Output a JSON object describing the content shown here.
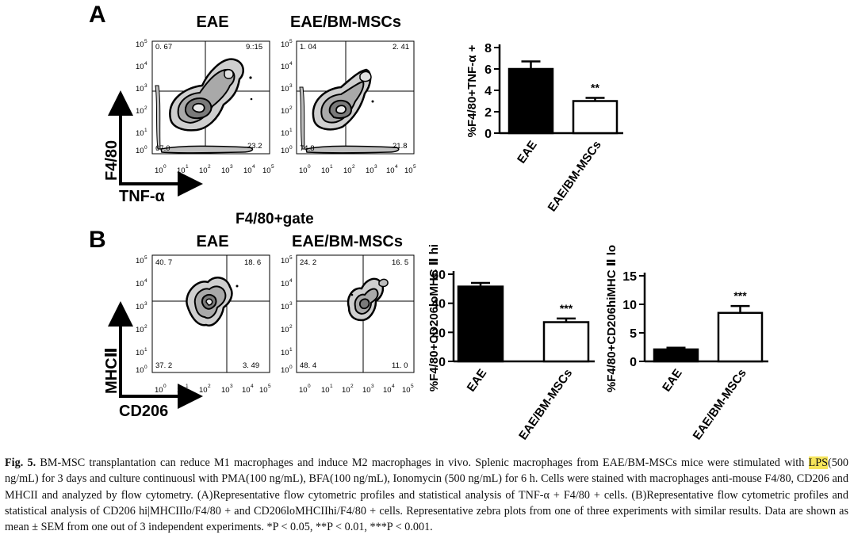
{
  "panel_a": {
    "letter": "A",
    "plots": [
      {
        "title": "EAE",
        "quadrants": {
          "ul": "0. 67",
          "ur": "9.:15",
          "ll": "67.0",
          "lr": "23.2"
        }
      },
      {
        "title": "EAE/BM-MSCs",
        "quadrants": {
          "ul": "1. 04",
          "ur": "2. 41",
          "ll": "74.8",
          "lr": "21.8"
        }
      }
    ],
    "y_axis_label": "F4/80",
    "x_axis_label": "TNF-α"
  },
  "panel_b": {
    "letter": "B",
    "gate_label": "F4/80+gate",
    "plots": [
      {
        "title": "EAE",
        "quadrants": {
          "ul": "40. 7",
          "ur": "18. 6",
          "ll": "37. 2",
          "lr": "3. 49"
        }
      },
      {
        "title": "EAE/BM-MSCs",
        "quadrants": {
          "ul": "24. 2",
          "ur": "16. 5",
          "ll": "48. 4",
          "lr": "11. 0"
        }
      }
    ],
    "y_axis_label": "MHCⅡ",
    "x_axis_label": "CD206"
  },
  "flow_ticks": {
    "x": [
      "10",
      "10",
      "10",
      "10",
      "10",
      "10"
    ],
    "x_exp": [
      "0",
      "1",
      "2",
      "3",
      "4",
      "5"
    ],
    "y": [
      "10",
      "10",
      "10",
      "10",
      "10",
      "10"
    ],
    "y_exp": [
      "5",
      "4",
      "3",
      "2",
      "1",
      "0"
    ]
  },
  "caption": {
    "label": "Fig. 5.",
    "segments": [
      " BM-MSC transplantation can reduce M1 macrophages and induce M2 macrophages in vivo. Splenic macrophages from EAE/BM-MSCs mice were stimulated with ",
      "LPS",
      "(500 ng/mL) for 3 days and culture continuousl with PMA(100 ng/mL), BFA(100 ng/mL), Ionomycin (500 ng/mL) for 6 h. Cells were stained with macrophages anti-mouse F4/80, CD206 and MHCII and analyzed by flow cytometry. (A)Representative flow cytometric profiles and statistical analysis of TNF-α + F4/80 +  cells. (B)Representative flow cytometric profiles and statistical analysis of CD206 hi|MHCIIlo/F4/80 +  and CD206loMHCIIhi/F4/80 +  cells. Representative zebra plots from one of three experiments with similar results. Data are shown as mean ± SEM from one out of 3 independent experiments. *P < 0.05, **P < 0.01, ***P < 0.001."
    ]
  },
  "chart_data": [
    {
      "type": "bar",
      "ylabel": "%F4/80+TNF-α +",
      "categories": [
        "EAE",
        "EAE/BM-MSCs"
      ],
      "values": [
        6.0,
        3.0
      ],
      "errors": [
        0.7,
        0.3
      ],
      "fills": [
        "#000000",
        "#ffffff"
      ],
      "ylim": [
        0,
        8
      ],
      "yticks": [
        0,
        2,
        4,
        6,
        8
      ],
      "annotations": [
        "",
        "**"
      ]
    },
    {
      "type": "bar",
      "ylabel": "%F4/80+CD206loMHC Ⅱ hi",
      "categories": [
        "EAE",
        "EAE/BM-MSCs"
      ],
      "values": [
        51.5,
        27.0
      ],
      "errors": [
        2.5,
        2.5
      ],
      "fills": [
        "#000000",
        "#ffffff"
      ],
      "ylim": [
        0,
        60
      ],
      "yticks": [
        0,
        20,
        40,
        60
      ],
      "annotations": [
        "",
        "***"
      ]
    },
    {
      "type": "bar",
      "ylabel": "%F4/80+CD206hiMHC Ⅱ lo",
      "categories": [
        "EAE",
        "EAE/BM-MSCs"
      ],
      "values": [
        2.1,
        8.5
      ],
      "errors": [
        0.3,
        1.2
      ],
      "fills": [
        "#000000",
        "#ffffff"
      ],
      "ylim": [
        0,
        15
      ],
      "yticks": [
        0,
        5,
        10,
        15
      ],
      "annotations": [
        "",
        "***"
      ]
    }
  ]
}
